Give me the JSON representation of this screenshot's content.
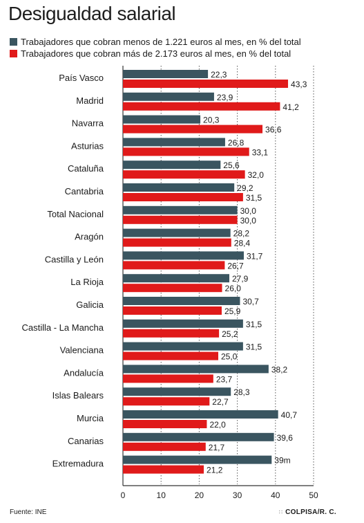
{
  "title": "Desigualdad salarial",
  "source": "Fuente: INE",
  "credit": "COLPISA/R. C.",
  "colors": {
    "low": "#3a5560",
    "high": "#e01a1a",
    "grid": "#555555"
  },
  "chart_data": {
    "type": "bar",
    "orientation": "horizontal",
    "title": "Desigualdad salarial",
    "categories": [
      "País Vasco",
      "Madrid",
      "Navarra",
      "Asturias",
      "Cataluña",
      "Cantabria",
      "Total Nacional",
      "Aragón",
      "Castilla y León",
      "La Rioja",
      "Galicia",
      "Castilla - La Mancha",
      "Valenciana",
      "Andalucía",
      "Islas Balears",
      "Murcia",
      "Canarias",
      "Extremadura"
    ],
    "series": [
      {
        "name": "Trabajadores que cobran menos de 1.221 euros al mes, en % del total",
        "color": "#3a5560",
        "values": [
          22.3,
          23.9,
          20.3,
          26.8,
          25.6,
          29.2,
          30.0,
          28.2,
          31.7,
          27.9,
          30.7,
          31.5,
          31.5,
          38.2,
          28.3,
          40.7,
          39.6,
          39.0
        ],
        "labels": [
          "22,3",
          "23,9",
          "20,3",
          "26,8",
          "25,6",
          "29,2",
          "30,0",
          "28,2",
          "31,7",
          "27,9",
          "30,7",
          "31,5",
          "31,5",
          "38,2",
          "28,3",
          "40,7",
          "39,6",
          "39m"
        ]
      },
      {
        "name": "Trabajadores que cobran más de 2.173 euros al mes, en % del total",
        "color": "#e01a1a",
        "values": [
          43.3,
          41.2,
          36.6,
          33.1,
          32.0,
          31.5,
          30.0,
          28.4,
          26.7,
          26.0,
          25.9,
          25.2,
          25.0,
          23.7,
          22.7,
          22.0,
          21.7,
          21.2
        ],
        "labels": [
          "43,3",
          "41,2",
          "36,6",
          "33,1",
          "32,0",
          "31,5",
          "30,0",
          "28,4",
          "26,7",
          "26,0",
          "25,9",
          "25,2",
          "25,0",
          "23,7",
          "22,7",
          "22,0",
          "21,7",
          "21,2"
        ]
      }
    ],
    "xlim": [
      0,
      50
    ],
    "xticks": [
      0,
      10,
      20,
      30,
      40,
      50
    ],
    "xtick_labels": [
      "0",
      "10",
      "20",
      "30",
      "40",
      "50"
    ],
    "grid": "vertical dotted",
    "legend": "top-left"
  }
}
